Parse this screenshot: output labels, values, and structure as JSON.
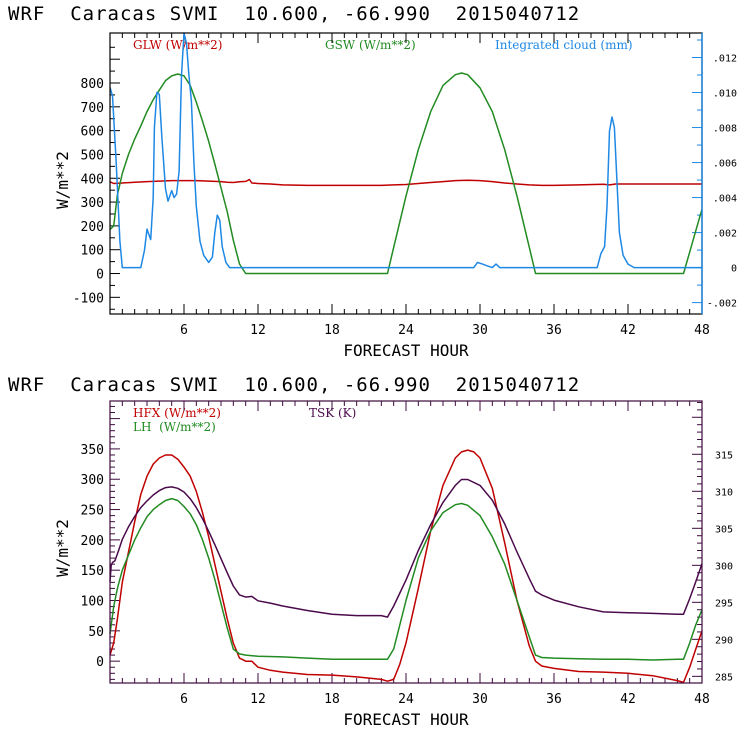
{
  "chart_data": [
    {
      "type": "line",
      "title": "WRF  Caracas SVMI  10.600, -66.990  2015040712",
      "xlabel": "FORECAST HOUR",
      "ylabel": "W/m**2",
      "xlim": [
        0,
        48
      ],
      "ylim": [
        -170,
        1010
      ],
      "y2lim": [
        -0.00265,
        0.0134
      ],
      "xticks": [
        "6",
        "12",
        "18",
        "24",
        "30",
        "36",
        "42",
        "48"
      ],
      "xtick_values": [
        6,
        12,
        18,
        24,
        30,
        36,
        42,
        48
      ],
      "yticks": [
        "-100",
        "0",
        "100",
        "200",
        "300",
        "400",
        "500",
        "600",
        "700",
        "800"
      ],
      "ytick_values": [
        -100,
        0,
        100,
        200,
        300,
        400,
        500,
        600,
        700,
        800
      ],
      "y2ticks": [
        "-.002",
        "0",
        ".002",
        ".004",
        ".006",
        ".008",
        ".010",
        ".012"
      ],
      "y2tick_values": [
        -0.002,
        0,
        0.002,
        0.004,
        0.006,
        0.008,
        0.01,
        0.012
      ],
      "grid": false,
      "legend_position": "top",
      "series": [
        {
          "name": "GLW (W/m**2)",
          "axis": "left",
          "color": "#c00000",
          "x": [
            0,
            0.3,
            1,
            2,
            3,
            4,
            5,
            6,
            7,
            8,
            9,
            9.5,
            10,
            10.5,
            11,
            11.3,
            11.5,
            12,
            13,
            14,
            16,
            18,
            20,
            22,
            23,
            24,
            25,
            26,
            27,
            28,
            29,
            30,
            31,
            32,
            33,
            34,
            35,
            36,
            38,
            40,
            40.5,
            41,
            42,
            44,
            46,
            48
          ],
          "y": [
            385,
            378,
            380,
            383,
            386,
            388,
            390,
            390,
            390,
            388,
            386,
            383,
            382,
            385,
            387,
            395,
            380,
            378,
            376,
            372,
            370,
            370,
            370,
            370,
            372,
            374,
            378,
            382,
            386,
            390,
            392,
            390,
            386,
            380,
            376,
            372,
            370,
            370,
            372,
            375,
            372,
            376,
            376,
            376,
            376,
            376
          ]
        },
        {
          "name": "GSW (W/m**2)",
          "axis": "left",
          "color": "#228b22",
          "x": [
            0,
            0.3,
            0.6,
            1,
            1.5,
            2,
            2.5,
            3,
            3.5,
            4,
            4.5,
            5,
            5.5,
            6,
            6.5,
            7,
            7.5,
            8,
            8.5,
            9,
            9.5,
            10,
            10.5,
            11,
            22,
            22.5,
            23,
            24,
            25,
            26,
            27,
            28,
            28.5,
            29,
            30,
            31,
            32,
            33,
            34,
            34.5,
            35,
            46,
            46.5,
            47,
            47.5,
            48
          ],
          "y": [
            185,
            200,
            330,
            420,
            500,
            565,
            620,
            680,
            730,
            770,
            810,
            830,
            838,
            830,
            790,
            720,
            640,
            555,
            460,
            360,
            260,
            140,
            40,
            0,
            0,
            0,
            110,
            325,
            520,
            680,
            790,
            835,
            842,
            835,
            780,
            680,
            520,
            325,
            110,
            0,
            0,
            0,
            0,
            90,
            180,
            270
          ]
        },
        {
          "name": "Integrated cloud (mm)",
          "axis": "right",
          "color": "#1e88e5",
          "x": [
            0,
            0.2,
            0.5,
            0.8,
            1.0,
            1.2,
            1.5,
            2,
            2.5,
            2.8,
            3.0,
            3.1,
            3.3,
            3.5,
            3.6,
            3.8,
            4.0,
            4.2,
            4.5,
            4.7,
            5.0,
            5.2,
            5.4,
            5.6,
            5.8,
            6.0,
            6.2,
            6.4,
            6.6,
            6.8,
            7.0,
            7.3,
            7.6,
            8.0,
            8.3,
            8.5,
            8.7,
            8.9,
            9.1,
            9.4,
            9.7,
            10,
            12,
            16,
            22,
            29.5,
            29.8,
            30.2,
            30.6,
            31.0,
            31.3,
            31.6,
            31.9,
            32.2,
            34,
            38,
            39.5,
            39.8,
            40.1,
            40.3,
            40.5,
            40.7,
            40.9,
            41.1,
            41.3,
            41.6,
            42.0,
            42.5,
            43,
            45,
            48
          ],
          "y": [
            0.0103,
            0.0098,
            0.006,
            0.0015,
            0.0,
            0.0,
            0.0,
            0.0,
            0.0,
            0.001,
            0.0022,
            0.002,
            0.0016,
            0.004,
            0.008,
            0.01,
            0.0099,
            0.0075,
            0.0045,
            0.0038,
            0.0044,
            0.004,
            0.0042,
            0.0055,
            0.011,
            0.0135,
            0.0128,
            0.011,
            0.0095,
            0.006,
            0.0035,
            0.0015,
            0.0007,
            0.0003,
            0.0006,
            0.002,
            0.003,
            0.0027,
            0.0012,
            0.0003,
            0.0,
            0.0,
            0.0,
            0.0,
            0.0,
            0.0,
            0.0003,
            0.0002,
            0.0001,
            0.0,
            0.0002,
            0.0,
            0.0,
            0.0,
            0.0,
            0.0,
            0.0,
            0.0008,
            0.0012,
            0.0035,
            0.0078,
            0.0086,
            0.008,
            0.005,
            0.002,
            0.0007,
            0.0002,
            0.0,
            0.0,
            0.0,
            0.0
          ]
        }
      ]
    },
    {
      "type": "line",
      "title": "WRF  Caracas SVMI  10.600, -66.990  2015040712",
      "xlabel": "FORECAST HOUR",
      "ylabel": "W/m**2",
      "xlim": [
        0,
        48
      ],
      "ylim": [
        -36,
        429
      ],
      "y2lim": [
        284.1,
        322.2
      ],
      "xticks": [
        "6",
        "12",
        "18",
        "24",
        "30",
        "36",
        "42",
        "48"
      ],
      "xtick_values": [
        6,
        12,
        18,
        24,
        30,
        36,
        42,
        48
      ],
      "yticks": [
        "0",
        "50",
        "100",
        "150",
        "200",
        "250",
        "300",
        "350"
      ],
      "ytick_values": [
        0,
        50,
        100,
        150,
        200,
        250,
        300,
        350
      ],
      "y2ticks": [
        "285",
        "290",
        "295",
        "300",
        "305",
        "310",
        "315"
      ],
      "y2tick_values": [
        285,
        290,
        295,
        300,
        305,
        310,
        315
      ],
      "grid": false,
      "legend_position": "top-left",
      "series": [
        {
          "name": "HFX (W/m**2)",
          "axis": "left",
          "color": "#c00000",
          "x": [
            0,
            0.3,
            0.6,
            1,
            1.5,
            2,
            2.5,
            3,
            3.5,
            4,
            4.5,
            5,
            5.5,
            6,
            6.5,
            7,
            7.5,
            8,
            8.5,
            9,
            9.5,
            10,
            10.5,
            11,
            11.5,
            12,
            13,
            14,
            16,
            18,
            20,
            22,
            22.5,
            23,
            23.5,
            24,
            25,
            26,
            27,
            28,
            28.5,
            29,
            29.5,
            30,
            31,
            32,
            33,
            34,
            34.5,
            35,
            36,
            38,
            40,
            42,
            44,
            46,
            46.5,
            47,
            47.5,
            48
          ],
          "y": [
            10,
            30,
            70,
            130,
            180,
            230,
            275,
            305,
            325,
            335,
            340,
            340,
            333,
            320,
            305,
            280,
            245,
            205,
            160,
            115,
            70,
            30,
            5,
            0,
            0,
            -10,
            -15,
            -18,
            -22,
            -23,
            -26,
            -30,
            -33,
            -30,
            -5,
            30,
            120,
            215,
            290,
            335,
            345,
            348,
            345,
            335,
            285,
            195,
            100,
            25,
            0,
            -8,
            -12,
            -17,
            -18,
            -20,
            -24,
            -32,
            -35,
            -10,
            20,
            50
          ]
        },
        {
          "name": "LH (W/m**2)",
          "axis": "left",
          "color": "#228b22",
          "x": [
            0,
            0.3,
            0.6,
            1,
            1.5,
            2,
            2.5,
            3,
            3.5,
            4,
            4.5,
            5,
            5.5,
            6,
            6.5,
            7,
            7.5,
            8,
            8.5,
            9,
            9.5,
            10,
            10.5,
            11,
            12,
            14,
            16,
            18,
            20,
            22,
            22.5,
            23,
            24,
            25,
            26,
            27,
            28,
            28.5,
            29,
            30,
            31,
            32,
            33,
            34,
            34.5,
            35,
            36,
            38,
            40,
            42,
            44,
            46,
            46.5,
            47,
            47.5,
            48
          ],
          "y": [
            45,
            90,
            120,
            150,
            175,
            200,
            220,
            238,
            250,
            258,
            265,
            268,
            265,
            255,
            243,
            225,
            200,
            170,
            135,
            95,
            55,
            20,
            12,
            10,
            8,
            7,
            5,
            3,
            3,
            3,
            3,
            20,
            100,
            170,
            215,
            245,
            258,
            260,
            257,
            240,
            205,
            160,
            100,
            40,
            10,
            6,
            5,
            4,
            3,
            3,
            2,
            3,
            3,
            30,
            60,
            85
          ]
        },
        {
          "name": "TSK (K)",
          "axis": "right",
          "color": "#4b0a4b",
          "x": [
            0,
            0.1,
            0.2,
            0.4,
            0.7,
            1,
            1.5,
            2,
            2.5,
            3,
            3.5,
            4,
            4.5,
            5,
            5.5,
            6,
            6.5,
            7,
            7.5,
            8,
            8.5,
            9,
            9.5,
            10,
            10.5,
            11,
            11.5,
            12,
            13,
            14,
            16,
            18,
            20,
            22,
            22.5,
            23,
            24,
            25,
            26,
            27,
            28,
            28.5,
            29,
            30,
            31,
            32,
            33,
            34,
            34.5,
            35,
            36,
            38,
            40,
            42,
            44,
            46,
            46.5,
            47,
            47.5,
            48
          ],
          "y": [
            297.8,
            300.0,
            300.4,
            300.6,
            302.0,
            303.5,
            305.2,
            306.6,
            307.8,
            308.7,
            309.5,
            310.1,
            310.5,
            310.6,
            310.4,
            309.9,
            309.0,
            307.8,
            306.3,
            304.6,
            302.8,
            300.9,
            299.0,
            297.2,
            296.0,
            295.7,
            295.8,
            295.2,
            294.9,
            294.5,
            293.9,
            293.4,
            293.2,
            293.2,
            293.0,
            294.5,
            298.0,
            302.0,
            305.5,
            308.5,
            310.8,
            311.6,
            311.6,
            310.8,
            308.8,
            305.6,
            301.8,
            298.2,
            296.5,
            296.0,
            295.3,
            294.4,
            293.7,
            293.6,
            293.5,
            293.4,
            293.4,
            295.5,
            297.8,
            300.2
          ]
        }
      ]
    }
  ],
  "charts": [
    {
      "title": "WRF  Caracas SVMI  10.600, -66.990  2015040712",
      "xlabel": "FORECAST HOUR",
      "ylabel": "W/m**2",
      "legend": [
        {
          "label": "GLW (W/m**2)",
          "color": "#c00000"
        },
        {
          "label": "GSW (W/m**2)",
          "color": "#228b22"
        },
        {
          "label": "Integrated cloud (mm)",
          "color": "#1e88e5"
        }
      ]
    },
    {
      "title": "WRF  Caracas SVMI  10.600, -66.990  2015040712",
      "xlabel": "FORECAST HOUR",
      "ylabel": "W/m**2",
      "legend": [
        {
          "label": "HFX (W/m**2)",
          "color": "#c00000"
        },
        {
          "label": "LH  (W/m**2)",
          "color": "#228b22"
        },
        {
          "label": "TSK (K)",
          "color": "#4b0a4b"
        }
      ]
    }
  ]
}
